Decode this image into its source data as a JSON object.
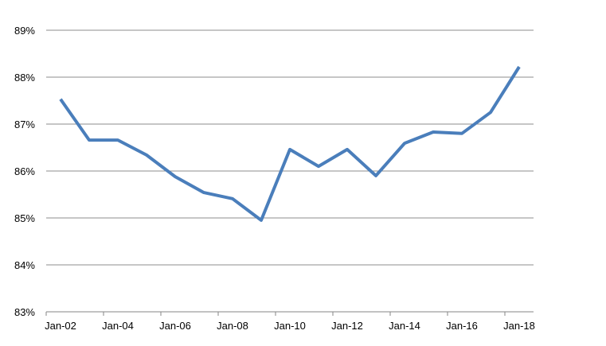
{
  "chart_data": {
    "type": "line",
    "title": "",
    "xlabel": "",
    "ylabel": "",
    "categories": [
      "Jan-02",
      "Jan-03",
      "Jan-04",
      "Jan-05",
      "Jan-06",
      "Jan-07",
      "Jan-08",
      "Jan-09",
      "Jan-10",
      "Jan-11",
      "Jan-12",
      "Jan-13",
      "Jan-14",
      "Jan-15",
      "Jan-16",
      "Jan-17",
      "Jan-18"
    ],
    "x_tick_labels": [
      "Jan-02",
      "Jan-04",
      "Jan-06",
      "Jan-08",
      "Jan-10",
      "Jan-12",
      "Jan-14",
      "Jan-16",
      "Jan-18"
    ],
    "y_tick_labels": [
      "83%",
      "84%",
      "85%",
      "86%",
      "87%",
      "88%",
      "89%"
    ],
    "ylim": [
      83,
      89
    ],
    "y_unit": "%",
    "grid": "horizontal",
    "legend": "none",
    "series": [
      {
        "color": "#4a7ebb",
        "values": [
          87.53,
          86.66,
          86.66,
          86.34,
          85.88,
          85.54,
          85.41,
          84.95,
          86.46,
          86.1,
          86.46,
          85.9,
          86.59,
          86.83,
          86.8,
          87.25,
          88.22
        ]
      }
    ]
  }
}
